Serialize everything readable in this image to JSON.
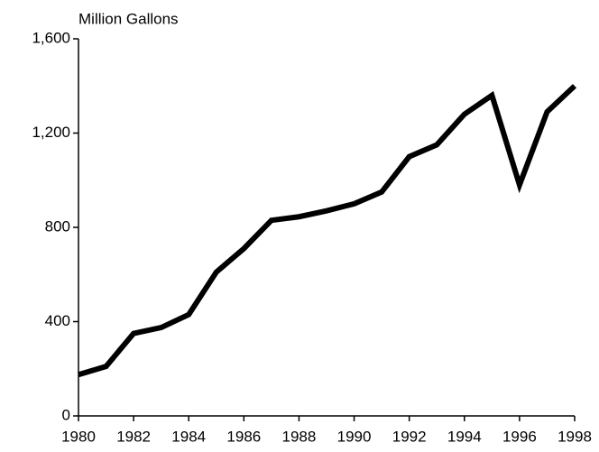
{
  "chart_data": {
    "type": "line",
    "y_label": "Million Gallons",
    "x": [
      1980,
      1981,
      1982,
      1983,
      1984,
      1985,
      1986,
      1987,
      1988,
      1989,
      1990,
      1991,
      1992,
      1993,
      1994,
      1995,
      1996,
      1997,
      1998
    ],
    "values": [
      175,
      210,
      350,
      375,
      430,
      610,
      710,
      830,
      845,
      870,
      900,
      950,
      1100,
      1150,
      1280,
      1360,
      980,
      1290,
      1400
    ],
    "color": "#000000",
    "xlim": [
      1980,
      1998
    ],
    "xticks": [
      1980,
      1982,
      1984,
      1986,
      1988,
      1990,
      1992,
      1994,
      1996,
      1998
    ],
    "ylim": [
      0,
      1600
    ],
    "yticks": [
      0,
      400,
      800,
      {
        "value": 1200,
        "label": "1,200"
      },
      {
        "value": 1600,
        "label": "1,600"
      }
    ],
    "grid": false
  }
}
